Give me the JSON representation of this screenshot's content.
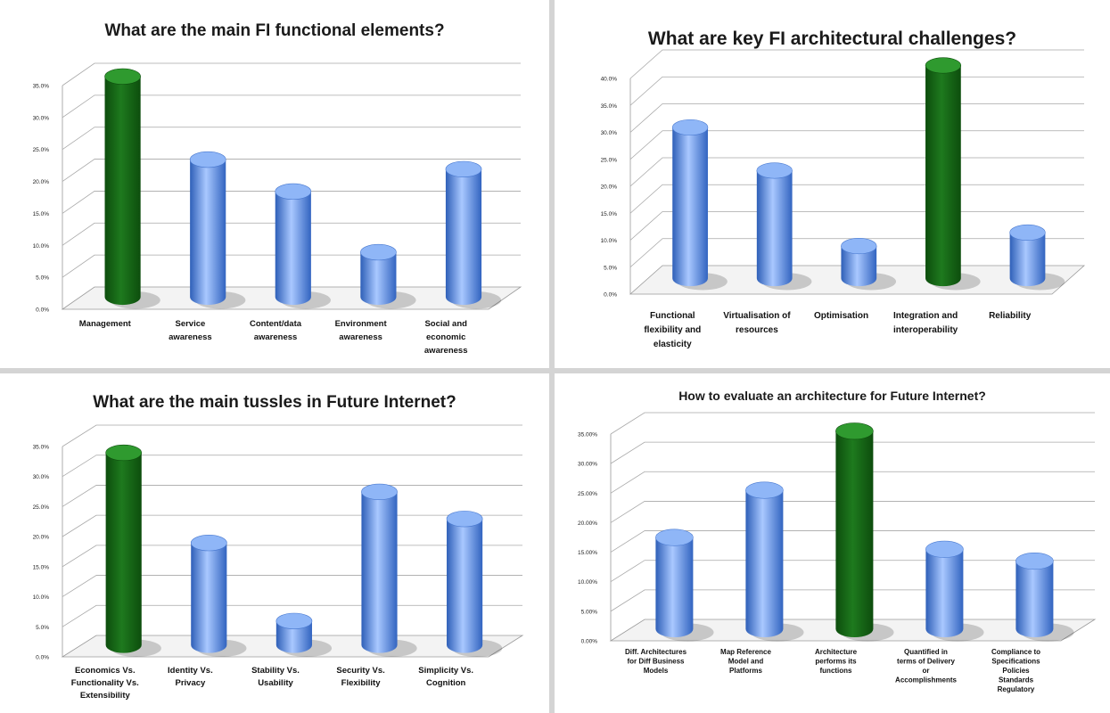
{
  "colors": {
    "bar_blue": "#5b8fe0",
    "bar_green": "#1e7a1e"
  },
  "chart_data": [
    {
      "type": "bar",
      "title": "What are the main FI functional elements?",
      "categories": [
        "Management",
        "Service awareness",
        "Content/data awareness",
        "Environment awareness",
        "Social and economic awareness"
      ],
      "category_lines": [
        [
          "Management"
        ],
        [
          "Service",
          "awareness"
        ],
        [
          "Content/data",
          "awareness"
        ],
        [
          "Environment",
          "awareness"
        ],
        [
          "Social and",
          "economic",
          "awareness"
        ]
      ],
      "values": [
        34.5,
        21.5,
        16.5,
        7.0,
        20.0
      ],
      "highlight_index": 0,
      "ylim": [
        0,
        35
      ],
      "yticks": [
        "0.0%",
        "5.0%",
        "10.0%",
        "15.0%",
        "20.0%",
        "25.0%",
        "30.0%",
        "35.0%"
      ],
      "xlabel": "",
      "ylabel": "",
      "grid": true
    },
    {
      "type": "bar",
      "title": "What are key FI architectural challenges?",
      "categories": [
        "Functional flexibility and elasticity",
        "Virtualisation of resources",
        "Optimisation",
        "Integration and interoperability",
        "Reliability"
      ],
      "category_lines": [
        [
          "Functional",
          "flexibility and",
          "elasticity"
        ],
        [
          "Virtualisation of",
          "resources"
        ],
        [
          "Optimisation"
        ],
        [
          "Integration and",
          "interoperability"
        ],
        [
          "Reliability"
        ]
      ],
      "values": [
        28.0,
        20.0,
        6.0,
        39.5,
        8.5
      ],
      "highlight_index": 3,
      "ylim": [
        0,
        40
      ],
      "yticks": [
        "0.0%",
        "5.0%",
        "10.0%",
        "15.0%",
        "20.0%",
        "25.0%",
        "30.0%",
        "35.0%",
        "40.0%"
      ],
      "xlabel": "",
      "ylabel": "",
      "grid": true
    },
    {
      "type": "bar",
      "title": "What are the main tussles in Future Internet?",
      "categories": [
        "Economics Vs. Functionality Vs. Extensibility",
        "Identity Vs. Privacy",
        "Stability Vs. Usability",
        "Security Vs. Flexibility",
        "Simplicity Vs. Cognition"
      ],
      "category_lines": [
        [
          "Economics Vs.",
          "Functionality Vs.",
          "Extensibility"
        ],
        [
          "Identity Vs.",
          "Privacy"
        ],
        [
          "Stability Vs.",
          "Usability"
        ],
        [
          "Security Vs.",
          "Flexibility"
        ],
        [
          "Simplicity Vs.",
          "Cognition"
        ]
      ],
      "values": [
        32.0,
        17.0,
        4.0,
        25.5,
        21.0
      ],
      "highlight_index": 0,
      "ylim": [
        0,
        35
      ],
      "yticks": [
        "0.0%",
        "5.0%",
        "10.0%",
        "15.0%",
        "20.0%",
        "25.0%",
        "30.0%",
        "35.0%"
      ],
      "xlabel": "",
      "ylabel": "",
      "grid": true
    },
    {
      "type": "bar",
      "title": "How to evaluate an architecture for Future Internet?",
      "categories": [
        "Diff. Architectures for Diff Business Models",
        "Map Reference Model and Platforms",
        "Architecture performs its functions",
        "Quantified in terms of Delivery or Accomplishments",
        "Compliance to Specifications Policies Standards Regulatory"
      ],
      "category_lines": [
        [
          "Diff. Architectures",
          "for Diff Business",
          "Models"
        ],
        [
          "Map Reference",
          "Model and",
          "Platforms"
        ],
        [
          "Architecture",
          "performs its",
          "functions"
        ],
        [
          "Quantified in",
          "terms of Delivery",
          "or",
          "Accomplishments"
        ],
        [
          "Compliance to",
          "Specifications",
          "Policies",
          "Standards",
          "Regulatory"
        ]
      ],
      "values": [
        15.5,
        23.5,
        33.5,
        13.5,
        11.5
      ],
      "highlight_index": 2,
      "ylim": [
        0,
        35
      ],
      "yticks": [
        "0.00%",
        "5.00%",
        "10.00%",
        "15.00%",
        "20.00%",
        "25.00%",
        "30.00%",
        "35.00%"
      ],
      "xlabel": "",
      "ylabel": "",
      "grid": true
    }
  ]
}
